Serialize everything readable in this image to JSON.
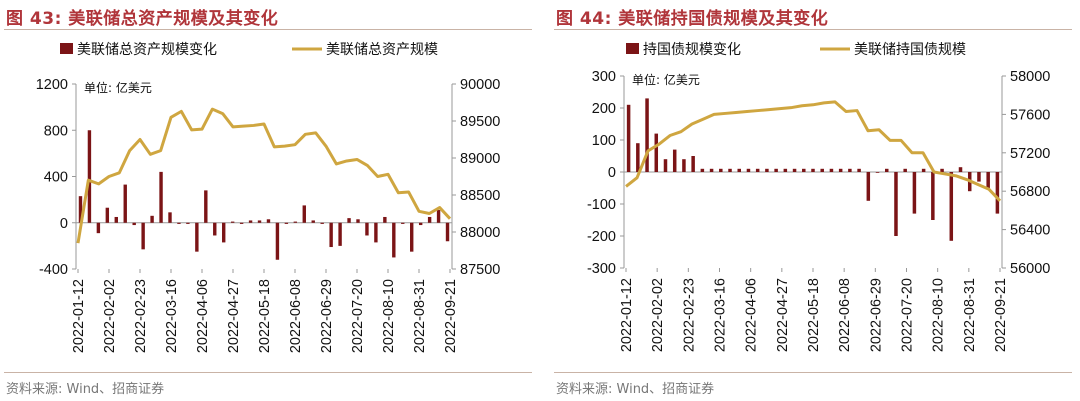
{
  "charts": [
    {
      "title": "图 43:  美联储总资产规模及其变化",
      "source": "资料来源: Wind、招商证券",
      "chart_data": {
        "type": "bar+line",
        "unit_label": "单位:  亿美元",
        "x_tick_labels": [
          "2022-01-12",
          "2022-02-02",
          "2022-02-23",
          "2022-03-16",
          "2022-04-06",
          "2022-04-27",
          "2022-05-18",
          "2022-06-08",
          "2022-06-29",
          "2022-07-20",
          "2022-08-10",
          "2022-08-31",
          "2022-09-21"
        ],
        "series": [
          {
            "name": "美联储总资产规模变化",
            "axis": "left",
            "type": "bar",
            "color": "#7b1416",
            "values": [
              230,
              800,
              -90,
              130,
              50,
              330,
              -20,
              -230,
              60,
              440,
              90,
              -10,
              -10,
              -250,
              280,
              -110,
              -170,
              10,
              -10,
              20,
              20,
              30,
              -320,
              -10,
              10,
              150,
              20,
              -10,
              -210,
              -200,
              40,
              30,
              -110,
              -170,
              50,
              -300,
              -10,
              -250,
              -20,
              50,
              110,
              -160
            ]
          },
          {
            "name": "美联储总资产规模",
            "axis": "right",
            "type": "line",
            "color": "#cfa640",
            "values": [
              87850,
              88700,
              88650,
              88750,
              88800,
              89100,
              89250,
              89050,
              89100,
              89550,
              89630,
              89380,
              89390,
              89660,
              89600,
              89420,
              89430,
              89440,
              89460,
              89150,
              89160,
              89180,
              89320,
              89340,
              89160,
              88920,
              88960,
              88980,
              88900,
              88750,
              88780,
              88530,
              88540,
              88280,
              88250,
              88330,
              88180
            ]
          }
        ],
        "y_left": {
          "min": -400,
          "max": 1200,
          "ticks": [
            -400,
            0,
            400,
            800,
            1200
          ]
        },
        "y_right": {
          "min": 87500,
          "max": 90000,
          "ticks": [
            87500,
            88000,
            88500,
            89000,
            89500,
            90000
          ]
        }
      }
    },
    {
      "title": "图 44:  美联储持国债规模及其变化",
      "source": "资料来源: Wind、招商证券",
      "chart_data": {
        "type": "bar+line",
        "unit_label": "单位:  亿美元",
        "x_tick_labels": [
          "2022-01-12",
          "2022-02-02",
          "2022-02-23",
          "2022-03-16",
          "2022-04-06",
          "2022-04-27",
          "2022-05-18",
          "2022-06-08",
          "2022-06-29",
          "2022-07-20",
          "2022-08-10",
          "2022-08-31",
          "2022-09-21"
        ],
        "series": [
          {
            "name": "持国债规模变化",
            "axis": "left",
            "type": "bar",
            "color": "#7b1416",
            "values": [
              210,
              90,
              230,
              120,
              40,
              70,
              40,
              50,
              10,
              10,
              10,
              10,
              10,
              10,
              10,
              10,
              10,
              10,
              10,
              10,
              10,
              10,
              10,
              10,
              10,
              10,
              -90,
              0,
              10,
              -200,
              10,
              -130,
              10,
              -150,
              10,
              -215,
              15,
              -60,
              -30,
              -50,
              -130
            ]
          },
          {
            "name": "美联储持国债规模",
            "axis": "right",
            "type": "line",
            "color": "#cfa640",
            "values": [
              56850,
              56940,
              57220,
              57290,
              57380,
              57420,
              57500,
              57550,
              57600,
              57610,
              57620,
              57630,
              57640,
              57650,
              57660,
              57670,
              57690,
              57700,
              57720,
              57730,
              57630,
              57640,
              57430,
              57440,
              57330,
              57330,
              57200,
              57200,
              57000,
              56980,
              56960,
              56920,
              56870,
              56820,
              56700
            ]
          }
        ],
        "y_left": {
          "min": -300,
          "max": 300,
          "ticks": [
            -300,
            -200,
            -100,
            0,
            100,
            200,
            300
          ]
        },
        "y_right": {
          "min": 56000,
          "max": 58000,
          "ticks": [
            56000,
            56400,
            56800,
            57200,
            57600,
            58000
          ]
        }
      }
    }
  ]
}
